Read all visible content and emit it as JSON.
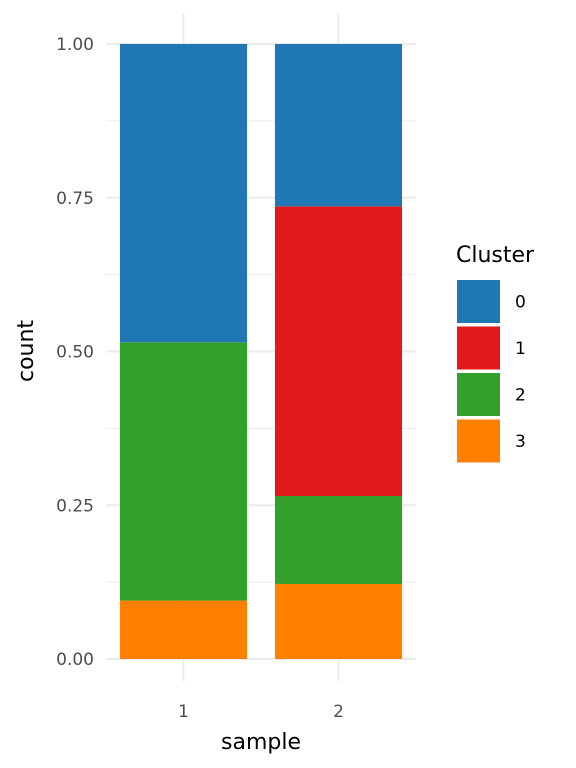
{
  "chart_data": {
    "type": "bar",
    "stacked": true,
    "xlabel": "sample",
    "ylabel": "count",
    "categories": [
      "1",
      "2"
    ],
    "ylim": [
      0,
      1
    ],
    "yticks": [
      "0.00",
      "0.25",
      "0.50",
      "0.75",
      "1.00"
    ],
    "grid": true,
    "legend": {
      "title": "Cluster",
      "placement": "right",
      "items": [
        "0",
        "1",
        "2",
        "3"
      ]
    },
    "series": [
      {
        "name": "3",
        "color": "#ff7f00",
        "values": [
          0.095,
          0.122
        ]
      },
      {
        "name": "2",
        "color": "#33a02c",
        "values": [
          0.42,
          0.143
        ]
      },
      {
        "name": "1",
        "color": "#e31a1c",
        "values": [
          0.0,
          0.471
        ]
      },
      {
        "name": "0",
        "color": "#1f78b4",
        "values": [
          0.485,
          0.264
        ]
      }
    ],
    "legend_colors": {
      "0": "#1f78b4",
      "1": "#e31a1c",
      "2": "#33a02c",
      "3": "#ff7f00"
    }
  }
}
